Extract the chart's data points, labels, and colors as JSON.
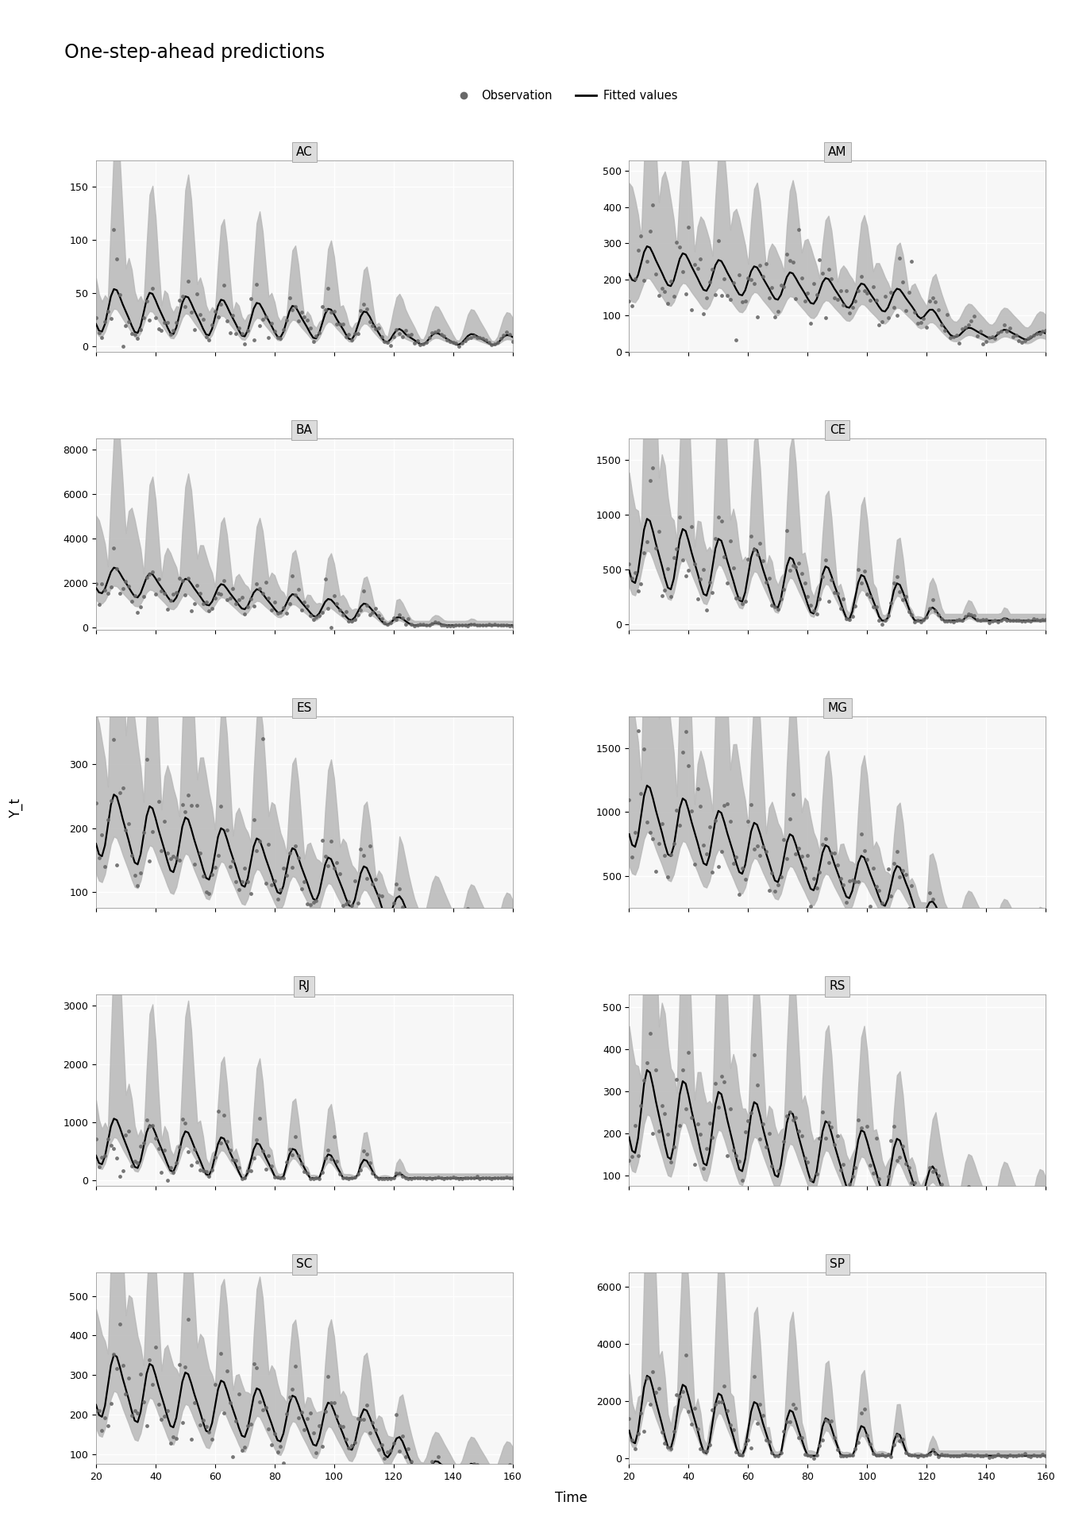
{
  "title": "One-step-ahead predictions",
  "legend_obs": "Observation",
  "legend_fit": "Fitted values",
  "xlabel": "Time",
  "ylabel": "Y_t",
  "states": [
    "AC",
    "AM",
    "BA",
    "CE",
    "ES",
    "MG",
    "RJ",
    "RS",
    "SC",
    "SP"
  ],
  "ylims": {
    "AC": [
      -5,
      175
    ],
    "AM": [
      0,
      530
    ],
    "BA": [
      -100,
      8500
    ],
    "CE": [
      -50,
      1700
    ],
    "ES": [
      75,
      375
    ],
    "MG": [
      250,
      1750
    ],
    "RJ": [
      -100,
      3200
    ],
    "RS": [
      75,
      530
    ],
    "SC": [
      75,
      560
    ],
    "SP": [
      -200,
      6500
    ]
  },
  "yticks": {
    "AC": [
      0,
      50,
      100,
      150
    ],
    "AM": [
      0,
      100,
      200,
      300,
      400,
      500
    ],
    "BA": [
      0,
      2000,
      4000,
      6000,
      8000
    ],
    "CE": [
      0,
      500,
      1000,
      1500
    ],
    "ES": [
      100,
      200,
      300
    ],
    "MG": [
      500,
      1000,
      1500
    ],
    "RJ": [
      0,
      1000,
      2000,
      3000
    ],
    "RS": [
      100,
      200,
      300,
      400,
      500
    ],
    "SC": [
      100,
      200,
      300,
      400,
      500
    ],
    "SP": [
      0,
      2000,
      4000,
      6000
    ]
  },
  "background_color": "#ffffff",
  "panel_bg": "#f7f7f7",
  "band_color": "#b8b8b8",
  "band_alpha": 0.85,
  "line_color": "#000000",
  "dot_color": "#686868",
  "dot_size": 12,
  "line_width": 1.6,
  "xticks": [
    20,
    40,
    60,
    80,
    100,
    120,
    140,
    160
  ],
  "t_start": 20,
  "t_end": 160,
  "n_points": 141,
  "title_fontsize": 17,
  "label_fontsize": 12,
  "tick_fontsize": 9,
  "panel_title_fontsize": 11
}
